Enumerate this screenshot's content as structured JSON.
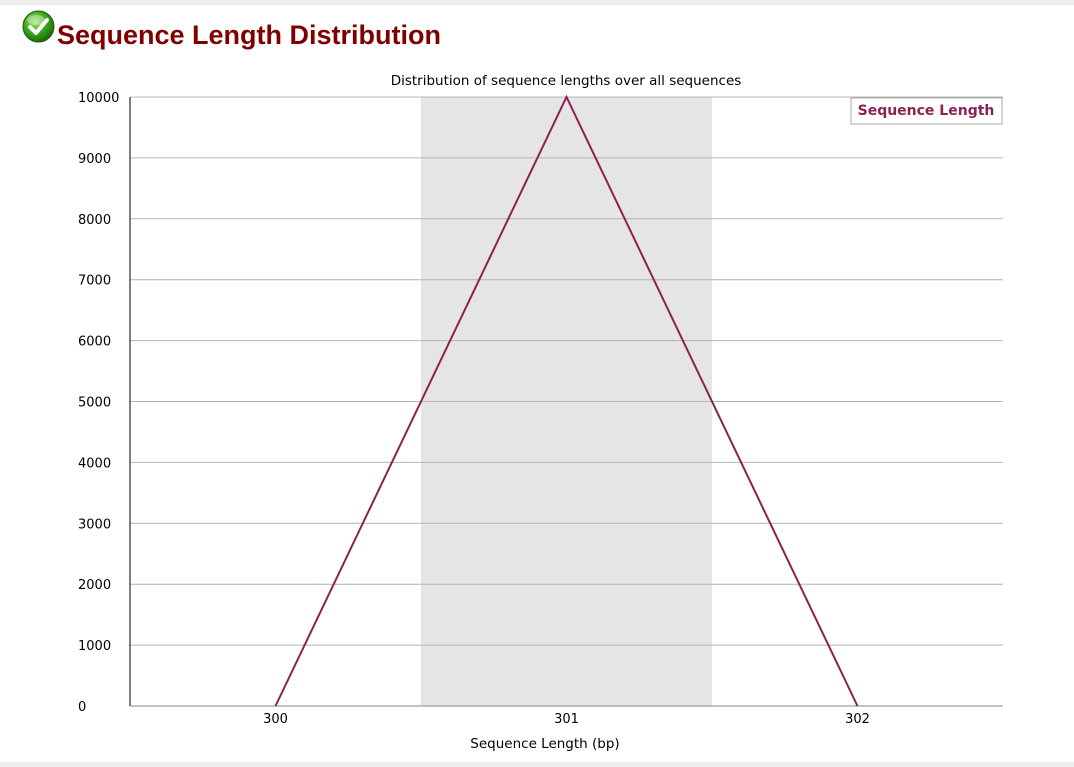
{
  "header": {
    "title": "Sequence Length Distribution",
    "status_icon": "pass-check-icon"
  },
  "chart_data": {
    "type": "line",
    "title": "Distribution of sequence lengths over all sequences",
    "xlabel": "Sequence Length (bp)",
    "ylabel": "",
    "categories": [
      "300",
      "301",
      "302"
    ],
    "series": [
      {
        "name": "Sequence Length",
        "color": "#8b2252",
        "values": [
          0,
          10000,
          0
        ]
      }
    ],
    "ylim": [
      0,
      10000
    ],
    "yticks": [
      "0",
      "1000",
      "2000",
      "3000",
      "4000",
      "5000",
      "6000",
      "7000",
      "8000",
      "9000",
      "10000"
    ],
    "highlight_category": "301",
    "grid": true,
    "legend_position": "top-right"
  }
}
